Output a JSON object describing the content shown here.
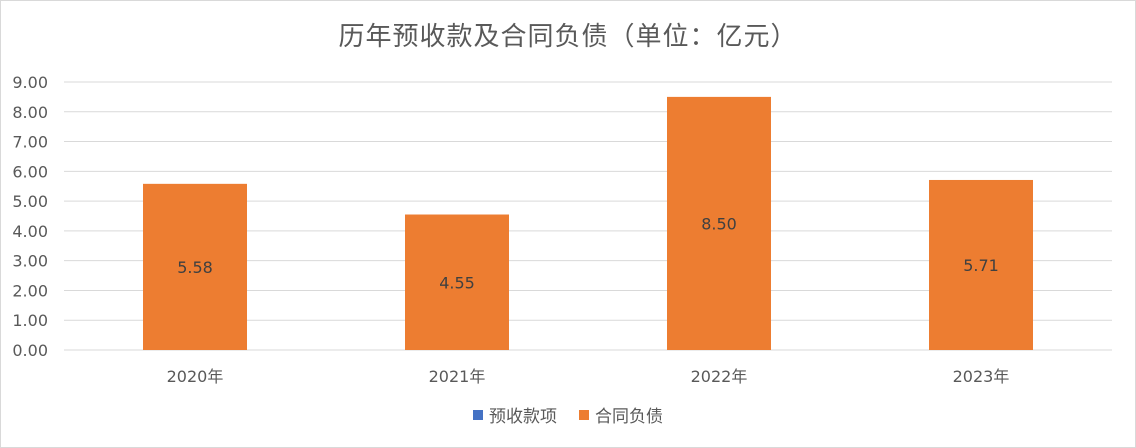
{
  "chart_data": {
    "type": "bar",
    "title": "历年预收款及合同负债（单位：亿元）",
    "categories": [
      "2020年",
      "2021年",
      "2022年",
      "2023年"
    ],
    "series": [
      {
        "name": "预收款项",
        "color": "#4472c4",
        "values": [
          null,
          null,
          null,
          null
        ]
      },
      {
        "name": "合同负债",
        "color": "#ed7d31",
        "values": [
          5.58,
          4.55,
          8.5,
          5.71
        ]
      }
    ],
    "data_labels": [
      "5.58",
      "4.55",
      "8.50",
      "5.71"
    ],
    "ylim": [
      0,
      9
    ],
    "yticks": [
      "0.00",
      "1.00",
      "2.00",
      "3.00",
      "4.00",
      "5.00",
      "6.00",
      "7.00",
      "8.00",
      "9.00"
    ],
    "grid": true,
    "legend_position": "bottom",
    "xlabel": "",
    "ylabel": ""
  }
}
